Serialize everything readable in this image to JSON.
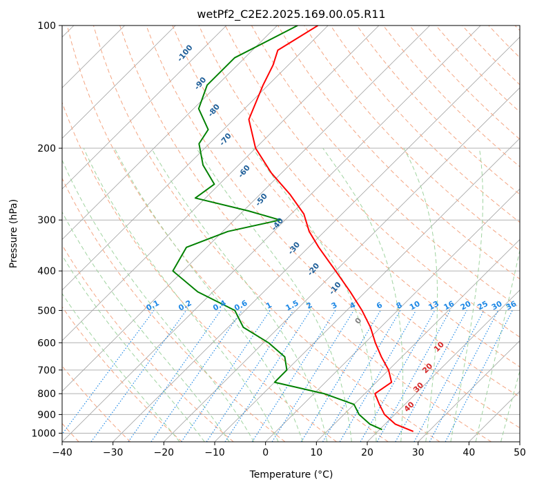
{
  "chart_data": {
    "type": "skew-t",
    "title": "wetPf2_C2E2.2025.169.00.05.R11",
    "xlabel": "Temperature (°C)",
    "ylabel": "Pressure (hPa)",
    "xlim": [
      -40,
      50
    ],
    "ylim": [
      1050,
      100
    ],
    "y_scale": "log",
    "grid": true,
    "x_ticks": [
      "−40",
      "−30",
      "−20",
      "−10",
      "0",
      "10",
      "20",
      "30",
      "40",
      "50"
    ],
    "y_ticks": [
      "100",
      "200",
      "300",
      "400",
      "500",
      "600",
      "700",
      "800",
      "900",
      "1000"
    ],
    "colors": {
      "temperature": "#ff0000",
      "dewpoint": "#008000",
      "isotherm": "#a0a0a0",
      "dry_adiabat": "#f4a582",
      "moist_adiabat": "#9fd39f",
      "mixing_ratio": "#1e88e5",
      "dry_adiabat_label": "#1f5f99",
      "ccl_label": "#d62728"
    },
    "series": [
      {
        "role": "temperature",
        "points": [
          {
            "p": 100,
            "t": -72
          },
          {
            "p": 115,
            "t": -75
          },
          {
            "p": 125,
            "t": -73
          },
          {
            "p": 140,
            "t": -71
          },
          {
            "p": 170,
            "t": -67
          },
          {
            "p": 200,
            "t": -60
          },
          {
            "p": 230,
            "t": -52
          },
          {
            "p": 260,
            "t": -44
          },
          {
            "p": 290,
            "t": -37.5
          },
          {
            "p": 320,
            "t": -33
          },
          {
            "p": 350,
            "t": -28
          },
          {
            "p": 400,
            "t": -20
          },
          {
            "p": 450,
            "t": -13
          },
          {
            "p": 500,
            "t": -7
          },
          {
            "p": 550,
            "t": -2
          },
          {
            "p": 600,
            "t": 2
          },
          {
            "p": 650,
            "t": 6
          },
          {
            "p": 700,
            "t": 10
          },
          {
            "p": 750,
            "t": 13
          },
          {
            "p": 800,
            "t": 12
          },
          {
            "p": 850,
            "t": 15
          },
          {
            "p": 900,
            "t": 18
          },
          {
            "p": 950,
            "t": 22
          },
          {
            "p": 990,
            "t": 27
          }
        ]
      },
      {
        "role": "dewpoint",
        "points": [
          {
            "p": 100,
            "t": -76
          },
          {
            "p": 120,
            "t": -82
          },
          {
            "p": 140,
            "t": -82
          },
          {
            "p": 160,
            "t": -79
          },
          {
            "p": 180,
            "t": -73
          },
          {
            "p": 195,
            "t": -72
          },
          {
            "p": 220,
            "t": -67
          },
          {
            "p": 245,
            "t": -61
          },
          {
            "p": 265,
            "t": -62
          },
          {
            "p": 285,
            "t": -49
          },
          {
            "p": 300,
            "t": -41
          },
          {
            "p": 320,
            "t": -49
          },
          {
            "p": 350,
            "t": -54
          },
          {
            "p": 400,
            "t": -52
          },
          {
            "p": 450,
            "t": -43
          },
          {
            "p": 500,
            "t": -32
          },
          {
            "p": 550,
            "t": -27
          },
          {
            "p": 600,
            "t": -19
          },
          {
            "p": 650,
            "t": -13
          },
          {
            "p": 700,
            "t": -10
          },
          {
            "p": 750,
            "t": -10
          },
          {
            "p": 800,
            "t": 2
          },
          {
            "p": 850,
            "t": 10
          },
          {
            "p": 900,
            "t": 13
          },
          {
            "p": 950,
            "t": 17
          },
          {
            "p": 980,
            "t": 20.5
          }
        ]
      }
    ],
    "dry_adiabat_labels": [
      "-100",
      "-90",
      "-80",
      "-70",
      "-60",
      "-50",
      "-40",
      "-30",
      "-20",
      "-10",
      "0"
    ],
    "ccl_labels": [
      "10",
      "20",
      "30",
      "40"
    ],
    "mixing_ratio_labels": [
      "0.1",
      "0.2",
      "0.4",
      "0.6",
      "1",
      "1.5",
      "2",
      "3",
      "4",
      "6",
      "8",
      "10",
      "13",
      "16",
      "20",
      "25",
      "30",
      "36"
    ]
  }
}
